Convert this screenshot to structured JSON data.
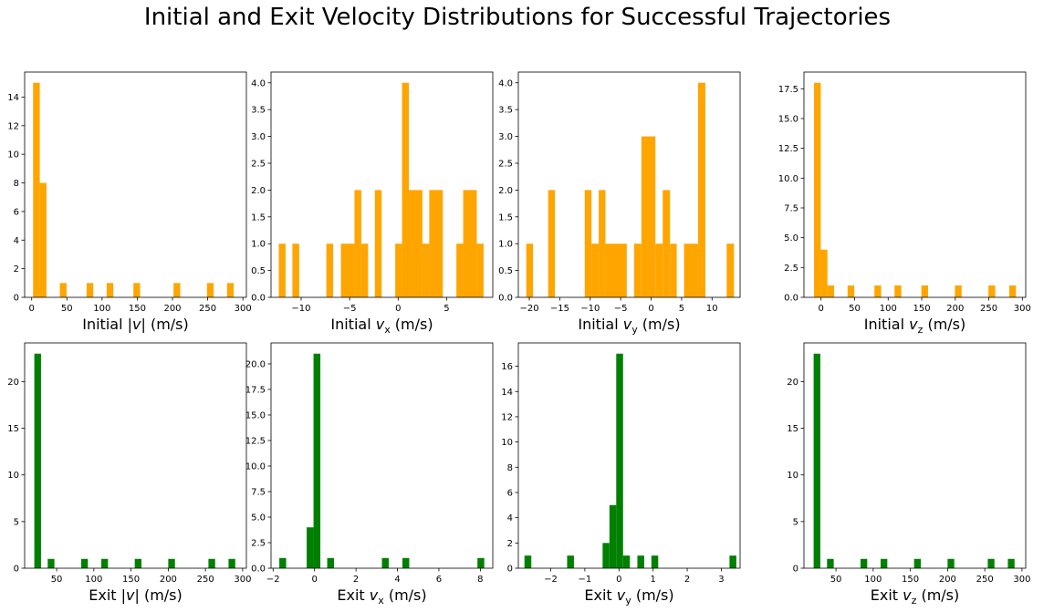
{
  "suptitle": "Initial and Exit Velocity Distributions for Successful Trajectories",
  "chart_data": [
    {
      "type": "bar",
      "row": 0,
      "col": 0,
      "color": "#FFA500",
      "xlabel": [
        {
          "t": "Initial |"
        },
        {
          "t": "v",
          "i": true
        },
        {
          "t": "| (m/s)"
        }
      ],
      "xlim": [
        -10,
        305
      ],
      "ylim": [
        0,
        15.75
      ],
      "xticks": [
        0,
        50,
        100,
        150,
        200,
        250,
        300
      ],
      "xtick_labels": [
        "0",
        "50",
        "100",
        "150",
        "200",
        "250",
        "300"
      ],
      "yticks": [
        0,
        2,
        4,
        6,
        8,
        10,
        12,
        14
      ],
      "ytick_labels": [
        "0",
        "2",
        "4",
        "6",
        "8",
        "10",
        "12",
        "14"
      ],
      "bars": [
        {
          "x0": 2,
          "x1": 11.5,
          "h": 15
        },
        {
          "x0": 11.5,
          "x1": 21,
          "h": 8
        },
        {
          "x0": 40,
          "x1": 49.5,
          "h": 1
        },
        {
          "x0": 78,
          "x1": 87.5,
          "h": 1
        },
        {
          "x0": 106.5,
          "x1": 116,
          "h": 1
        },
        {
          "x0": 144.5,
          "x1": 154,
          "h": 1
        },
        {
          "x0": 201.5,
          "x1": 211,
          "h": 1
        },
        {
          "x0": 249,
          "x1": 258.5,
          "h": 1
        },
        {
          "x0": 277.5,
          "x1": 287,
          "h": 1
        }
      ]
    },
    {
      "type": "bar",
      "row": 0,
      "col": 1,
      "color": "#FFA500",
      "xlabel": [
        {
          "t": "Initial "
        },
        {
          "t": "v",
          "i": true
        },
        {
          "t": "x",
          "s": true
        },
        {
          "t": " (m/s)"
        }
      ],
      "xlim": [
        -13.1,
        9.75
      ],
      "ylim": [
        0,
        4.2
      ],
      "xticks": [
        -10,
        -5,
        0,
        5
      ],
      "xtick_labels": [
        "−10",
        "−5",
        "0",
        "5"
      ],
      "yticks": [
        0,
        0.5,
        1,
        1.5,
        2,
        2.5,
        3,
        3.5,
        4
      ],
      "ytick_labels": [
        "0.0",
        "0.5",
        "1.0",
        "1.5",
        "2.0",
        "2.5",
        "3.0",
        "3.5",
        "4.0"
      ],
      "bars": [
        {
          "x0": -12.3,
          "x1": -11.6,
          "h": 1
        },
        {
          "x0": -10.9,
          "x1": -10.2,
          "h": 1
        },
        {
          "x0": -7.4,
          "x1": -6.7,
          "h": 1
        },
        {
          "x0": -5.9,
          "x1": -4.5,
          "h": 1
        },
        {
          "x0": -4.5,
          "x1": -3.8,
          "h": 2
        },
        {
          "x0": -3.8,
          "x1": -3.1,
          "h": 1
        },
        {
          "x0": -2.4,
          "x1": -1.7,
          "h": 2
        },
        {
          "x0": -0.3,
          "x1": 0.4,
          "h": 1
        },
        {
          "x0": 0.4,
          "x1": 1.1,
          "h": 4
        },
        {
          "x0": 1.1,
          "x1": 2.5,
          "h": 2
        },
        {
          "x0": 2.5,
          "x1": 3.2,
          "h": 1
        },
        {
          "x0": 3.2,
          "x1": 4.6,
          "h": 2
        },
        {
          "x0": 6.0,
          "x1": 6.7,
          "h": 1
        },
        {
          "x0": 6.7,
          "x1": 8.1,
          "h": 2
        },
        {
          "x0": 8.1,
          "x1": 8.8,
          "h": 1
        }
      ]
    },
    {
      "type": "bar",
      "row": 0,
      "col": 2,
      "color": "#FFA500",
      "xlabel": [
        {
          "t": "Initial "
        },
        {
          "t": "v",
          "i": true
        },
        {
          "t": "y",
          "s": true
        },
        {
          "t": " (m/s)"
        }
      ],
      "xlim": [
        -21.8,
        14.6
      ],
      "ylim": [
        0,
        4.2
      ],
      "xticks": [
        -20,
        -15,
        -10,
        -5,
        0,
        5,
        10
      ],
      "xtick_labels": [
        "−20",
        "−15",
        "−10",
        "−5",
        "0",
        "5",
        "10"
      ],
      "yticks": [
        0,
        0.5,
        1,
        1.5,
        2,
        2.5,
        3,
        3.5,
        4
      ],
      "ytick_labels": [
        "0.0",
        "0.5",
        "1.0",
        "1.5",
        "2.0",
        "2.5",
        "3.0",
        "3.5",
        "4.0"
      ],
      "bars": [
        {
          "x0": -20.5,
          "x1": -19.4,
          "h": 1
        },
        {
          "x0": -16.9,
          "x1": -15.8,
          "h": 2
        },
        {
          "x0": -10.9,
          "x1": -9.8,
          "h": 2
        },
        {
          "x0": -9.8,
          "x1": -8.6,
          "h": 1
        },
        {
          "x0": -8.6,
          "x1": -7.5,
          "h": 2
        },
        {
          "x0": -7.5,
          "x1": -4.0,
          "h": 1
        },
        {
          "x0": -2.8,
          "x1": -1.6,
          "h": 1
        },
        {
          "x0": -1.6,
          "x1": 0.7,
          "h": 3
        },
        {
          "x0": 0.7,
          "x1": 1.9,
          "h": 1
        },
        {
          "x0": 1.9,
          "x1": 3.1,
          "h": 2
        },
        {
          "x0": 3.1,
          "x1": 4.2,
          "h": 1
        },
        {
          "x0": 5.4,
          "x1": 7.7,
          "h": 1
        },
        {
          "x0": 7.7,
          "x1": 8.9,
          "h": 4
        },
        {
          "x0": 12.4,
          "x1": 13.6,
          "h": 1
        }
      ]
    },
    {
      "type": "bar",
      "row": 0,
      "col": 3,
      "color": "#FFA500",
      "xlabel": [
        {
          "t": "Initial "
        },
        {
          "t": "v",
          "i": true
        },
        {
          "t": "z",
          "s": true
        },
        {
          "t": " (m/s)"
        }
      ],
      "xlim": [
        -25.5,
        305
      ],
      "ylim": [
        0,
        18.9
      ],
      "xticks": [
        0,
        50,
        100,
        150,
        200,
        250,
        300
      ],
      "xtick_labels": [
        "0",
        "50",
        "100",
        "150",
        "200",
        "250",
        "300"
      ],
      "yticks": [
        0,
        2.5,
        5,
        7.5,
        10,
        12.5,
        15,
        17.5
      ],
      "ytick_labels": [
        "0.0",
        "2.5",
        "5.0",
        "7.5",
        "10.0",
        "12.5",
        "15.0",
        "17.5"
      ],
      "bars": [
        {
          "x0": -10.5,
          "x1": -0.5,
          "h": 18
        },
        {
          "x0": -0.5,
          "x1": 9.5,
          "h": 4
        },
        {
          "x0": 9.5,
          "x1": 19.5,
          "h": 1
        },
        {
          "x0": 39.5,
          "x1": 49.5,
          "h": 1
        },
        {
          "x0": 79.5,
          "x1": 89.5,
          "h": 1
        },
        {
          "x0": 109.5,
          "x1": 119.5,
          "h": 1
        },
        {
          "x0": 149.5,
          "x1": 159.5,
          "h": 1
        },
        {
          "x0": 199.5,
          "x1": 209.5,
          "h": 1
        },
        {
          "x0": 249.5,
          "x1": 259.5,
          "h": 1
        },
        {
          "x0": 280.5,
          "x1": 290.5,
          "h": 1
        }
      ]
    },
    {
      "type": "bar",
      "row": 1,
      "col": 0,
      "color": "#008000",
      "xlabel": [
        {
          "t": "Exit |"
        },
        {
          "t": "v",
          "i": true
        },
        {
          "t": "| (m/s)"
        }
      ],
      "xlim": [
        7,
        305
      ],
      "ylim": [
        0,
        24.15
      ],
      "xticks": [
        50,
        100,
        150,
        200,
        250,
        300
      ],
      "xtick_labels": [
        "50",
        "100",
        "150",
        "200",
        "250",
        "300"
      ],
      "yticks": [
        0,
        5,
        10,
        15,
        20
      ],
      "ytick_labels": [
        "0",
        "5",
        "10",
        "15",
        "20"
      ],
      "bars": [
        {
          "x0": 20,
          "x1": 29,
          "h": 23
        },
        {
          "x0": 38,
          "x1": 47,
          "h": 1
        },
        {
          "x0": 83,
          "x1": 92,
          "h": 1
        },
        {
          "x0": 110,
          "x1": 119,
          "h": 1
        },
        {
          "x0": 155,
          "x1": 164,
          "h": 1
        },
        {
          "x0": 200,
          "x1": 209,
          "h": 1
        },
        {
          "x0": 254,
          "x1": 263,
          "h": 1
        },
        {
          "x0": 281,
          "x1": 290,
          "h": 1
        }
      ]
    },
    {
      "type": "bar",
      "row": 1,
      "col": 1,
      "color": "#008000",
      "xlabel": [
        {
          "t": "Exit "
        },
        {
          "t": "v",
          "i": true
        },
        {
          "t": "x",
          "s": true
        },
        {
          "t": " (m/s)"
        }
      ],
      "xlim": [
        -2.1,
        8.6
      ],
      "ylim": [
        0,
        22.05
      ],
      "xticks": [
        -2,
        0,
        2,
        4,
        6,
        8
      ],
      "xtick_labels": [
        "−2",
        "0",
        "2",
        "4",
        "6",
        "8"
      ],
      "yticks": [
        0,
        2.5,
        5,
        7.5,
        10,
        12.5,
        15,
        17.5,
        20
      ],
      "ytick_labels": [
        "0.0",
        "2.5",
        "5.0",
        "7.5",
        "10.0",
        "12.5",
        "15.0",
        "17.5",
        "20.0"
      ],
      "bars": [
        {
          "x0": -1.7,
          "x1": -1.37,
          "h": 1
        },
        {
          "x0": -0.38,
          "x1": -0.05,
          "h": 4
        },
        {
          "x0": -0.05,
          "x1": 0.28,
          "h": 21
        },
        {
          "x0": 0.61,
          "x1": 0.94,
          "h": 1
        },
        {
          "x0": 3.25,
          "x1": 3.58,
          "h": 1
        },
        {
          "x0": 4.24,
          "x1": 4.57,
          "h": 1
        },
        {
          "x0": 7.86,
          "x1": 8.19,
          "h": 1
        }
      ]
    },
    {
      "type": "bar",
      "row": 1,
      "col": 2,
      "color": "#008000",
      "xlabel": [
        {
          "t": "Exit "
        },
        {
          "t": "v",
          "i": true
        },
        {
          "t": "y",
          "s": true
        },
        {
          "t": " (m/s)"
        }
      ],
      "xlim": [
        -2.95,
        3.55
      ],
      "ylim": [
        0,
        17.85
      ],
      "xticks": [
        -2,
        -1,
        0,
        1,
        2,
        3
      ],
      "xtick_labels": [
        "−2",
        "−1",
        "0",
        "1",
        "2",
        "3"
      ],
      "yticks": [
        0,
        2,
        4,
        6,
        8,
        10,
        12,
        14,
        16
      ],
      "ytick_labels": [
        "0",
        "2",
        "4",
        "6",
        "8",
        "10",
        "12",
        "14",
        "16"
      ],
      "bars": [
        {
          "x0": -2.77,
          "x1": -2.57,
          "h": 1
        },
        {
          "x0": -1.52,
          "x1": -1.32,
          "h": 1
        },
        {
          "x0": -0.48,
          "x1": -0.28,
          "h": 2
        },
        {
          "x0": -0.28,
          "x1": -0.08,
          "h": 5
        },
        {
          "x0": -0.08,
          "x1": 0.12,
          "h": 17
        },
        {
          "x0": 0.12,
          "x1": 0.32,
          "h": 1
        },
        {
          "x0": 0.54,
          "x1": 0.74,
          "h": 1
        },
        {
          "x0": 0.95,
          "x1": 1.15,
          "h": 1
        },
        {
          "x0": 3.24,
          "x1": 3.44,
          "h": 1
        }
      ]
    },
    {
      "type": "bar",
      "row": 1,
      "col": 3,
      "color": "#008000",
      "xlabel": [
        {
          "t": "Exit "
        },
        {
          "t": "v",
          "i": true
        },
        {
          "t": "z",
          "s": true
        },
        {
          "t": " (m/s)"
        }
      ],
      "xlim": [
        7,
        305
      ],
      "ylim": [
        0,
        24.15
      ],
      "xticks": [
        50,
        100,
        150,
        200,
        250,
        300
      ],
      "xtick_labels": [
        "50",
        "100",
        "150",
        "200",
        "250",
        "300"
      ],
      "yticks": [
        0,
        5,
        10,
        15,
        20
      ],
      "ytick_labels": [
        "0",
        "5",
        "10",
        "15",
        "20"
      ],
      "bars": [
        {
          "x0": 20,
          "x1": 29,
          "h": 23
        },
        {
          "x0": 38,
          "x1": 47,
          "h": 1
        },
        {
          "x0": 83,
          "x1": 92,
          "h": 1
        },
        {
          "x0": 110,
          "x1": 119,
          "h": 1
        },
        {
          "x0": 155,
          "x1": 164,
          "h": 1
        },
        {
          "x0": 200,
          "x1": 209,
          "h": 1
        },
        {
          "x0": 254,
          "x1": 263,
          "h": 1
        },
        {
          "x0": 281,
          "x1": 290,
          "h": 1
        }
      ]
    }
  ]
}
